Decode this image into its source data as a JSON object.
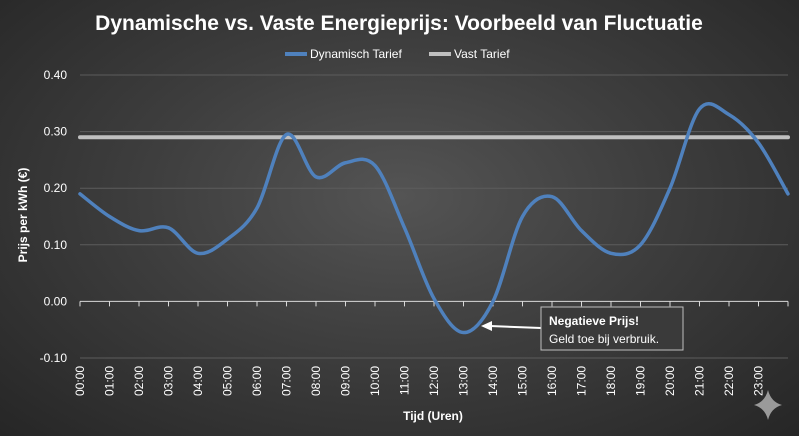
{
  "chart_data": {
    "type": "line",
    "title": "Dynamische vs. Vaste Energieprijs: Voorbeeld van Fluctuatie",
    "xlabel": "Tijd (Uren)",
    "ylabel": "Prijs per kWh (€)",
    "ylim": [
      -0.1,
      0.4
    ],
    "yticks": [
      "0.40",
      "0.30",
      "0.20",
      "0.10",
      "0.00",
      "-0.10"
    ],
    "categories": [
      "00:00",
      "01:00",
      "02:00",
      "03:00",
      "04:00",
      "05:00",
      "06:00",
      "07:00",
      "08:00",
      "09:00",
      "10:00",
      "11:00",
      "12:00",
      "13:00",
      "14:00",
      "15:00",
      "16:00",
      "17:00",
      "18:00",
      "19:00",
      "20:00",
      "21:00",
      "22:00",
      "23:00",
      ""
    ],
    "grid": true,
    "legend": "top",
    "series": [
      {
        "name": "Dynamisch Tarief",
        "color": "#4f81bd",
        "values": [
          0.19,
          0.15,
          0.125,
          0.13,
          0.085,
          0.11,
          0.165,
          0.295,
          0.22,
          0.245,
          0.24,
          0.13,
          0.005,
          -0.055,
          0.0,
          0.15,
          0.185,
          0.125,
          0.085,
          0.1,
          0.2,
          0.34,
          0.33,
          0.28,
          0.19
        ]
      },
      {
        "name": "Vast Tarief",
        "color": "#bfbfbf",
        "values": [
          0.29,
          0.29,
          0.29,
          0.29,
          0.29,
          0.29,
          0.29,
          0.29,
          0.29,
          0.29,
          0.29,
          0.29,
          0.29,
          0.29,
          0.29,
          0.29,
          0.29,
          0.29,
          0.29,
          0.29,
          0.29,
          0.29,
          0.29,
          0.29,
          0.29
        ]
      }
    ],
    "annotation": {
      "title": "Negatieve Prijs!",
      "text": "Geld toe bij verbruik.",
      "target_category": "13:00"
    }
  }
}
